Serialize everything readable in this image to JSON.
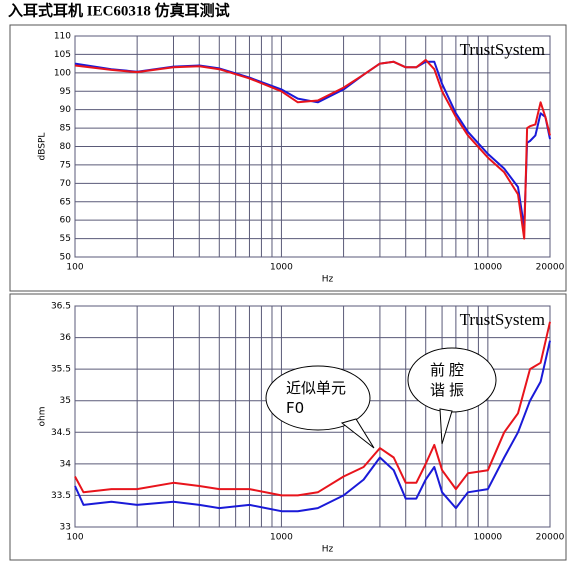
{
  "title": "入耳式耳机 IEC60318 仿真耳测试",
  "chart_data": [
    {
      "type": "line",
      "watermark": "TrustSystem",
      "xlabel": "Hz",
      "ylabel": "dBSPL",
      "xscale": "log",
      "grid": true,
      "x": [
        100,
        150,
        200,
        300,
        400,
        500,
        700,
        1000,
        1200,
        1500,
        2000,
        2500,
        3000,
        3500,
        4000,
        4500,
        5000,
        5500,
        6000,
        7000,
        8000,
        10000,
        12000,
        14000,
        15000,
        15500,
        16000,
        17000,
        18000,
        19000,
        20000
      ],
      "series": [
        {
          "color": "#1a1ad8",
          "values": [
            102.5,
            101,
            100.3,
            101.7,
            102,
            101.2,
            98.7,
            95.5,
            93,
            92,
            95.5,
            99.5,
            102.5,
            103,
            101.5,
            101.5,
            103,
            103,
            97,
            89,
            84,
            78,
            74,
            69,
            58,
            81,
            81.5,
            83,
            89,
            88,
            82
          ]
        },
        {
          "color": "#e8141c",
          "values": [
            102,
            100.8,
            100.2,
            101.5,
            101.8,
            101,
            98.5,
            95,
            92,
            92.5,
            96,
            99.5,
            102.5,
            103,
            101.5,
            101.5,
            103.5,
            101,
            95,
            88,
            83,
            77,
            73,
            67,
            55,
            85,
            85.5,
            86,
            92,
            88,
            83
          ]
        }
      ],
      "xlim": [
        100,
        20000
      ],
      "xticks": [
        100,
        1000,
        10000,
        20000
      ],
      "xminor": [
        200,
        300,
        400,
        500,
        600,
        700,
        800,
        900,
        2000,
        3000,
        4000,
        5000,
        6000,
        7000,
        8000,
        9000
      ],
      "ylim": [
        50,
        110
      ],
      "yticks": [
        50,
        55,
        60,
        65,
        70,
        75,
        80,
        85,
        90,
        95,
        100,
        105,
        110
      ]
    },
    {
      "type": "line",
      "watermark": "TrustSystem",
      "xlabel": "Hz",
      "ylabel": "ohm",
      "xscale": "log",
      "grid": true,
      "x": [
        100,
        110,
        150,
        200,
        300,
        400,
        500,
        700,
        1000,
        1200,
        1500,
        2000,
        2500,
        3000,
        3500,
        4000,
        4500,
        5000,
        5500,
        6000,
        7000,
        8000,
        10000,
        12000,
        14000,
        16000,
        18000,
        20000
      ],
      "series": [
        {
          "color": "#1a1ad8",
          "values": [
            33.65,
            33.35,
            33.4,
            33.35,
            33.4,
            33.35,
            33.3,
            33.35,
            33.25,
            33.25,
            33.3,
            33.5,
            33.75,
            34.1,
            33.9,
            33.45,
            33.45,
            33.75,
            33.95,
            33.55,
            33.3,
            33.55,
            33.6,
            34.1,
            34.5,
            35.0,
            35.3,
            35.95
          ]
        },
        {
          "color": "#e8141c",
          "values": [
            33.8,
            33.55,
            33.6,
            33.6,
            33.7,
            33.65,
            33.6,
            33.6,
            33.5,
            33.5,
            33.55,
            33.8,
            33.95,
            34.25,
            34.1,
            33.7,
            33.7,
            34,
            34.3,
            33.9,
            33.6,
            33.85,
            33.9,
            34.5,
            34.8,
            35.5,
            35.6,
            36.25
          ]
        }
      ],
      "xlim": [
        100,
        20000
      ],
      "xticks": [
        100,
        1000,
        10000,
        20000
      ],
      "xminor": [
        200,
        300,
        400,
        500,
        600,
        700,
        800,
        900,
        2000,
        3000,
        4000,
        5000,
        6000,
        7000,
        8000,
        9000
      ],
      "ylim": [
        33,
        36.5
      ],
      "yticks": [
        33,
        33.5,
        34,
        34.5,
        35,
        35.5,
        36,
        36.5
      ],
      "annotations": [
        {
          "text": "近似单元F0"
        },
        {
          "text": "前腔谐振"
        }
      ]
    }
  ]
}
